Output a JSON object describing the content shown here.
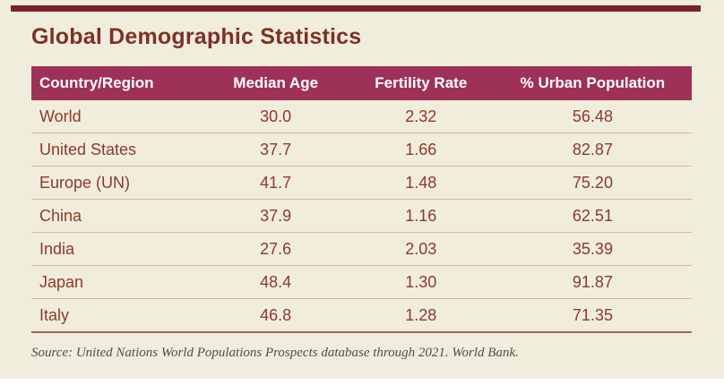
{
  "title": "Global Demographic Statistics",
  "colors": {
    "background": "#f1eddc",
    "top_stripe": "#7a212d",
    "title_text": "#7c3126",
    "header_background": "#9e3158",
    "header_text": "#ffffff",
    "body_text": "#8c392d",
    "row_separator": "#d9b2ac",
    "source_text": "#4e4e4e"
  },
  "chart_data": {
    "type": "table",
    "title": "Global Demographic Statistics",
    "columns": [
      "Country/Region",
      "Median Age",
      "Fertility Rate",
      "% Urban Population"
    ],
    "rows": [
      {
        "country": "World",
        "median_age": "30.0",
        "fertility_rate": "2.32",
        "urban_pct": "56.48"
      },
      {
        "country": "United States",
        "median_age": "37.7",
        "fertility_rate": "1.66",
        "urban_pct": "82.87"
      },
      {
        "country": "Europe (UN)",
        "median_age": "41.7",
        "fertility_rate": "1.48",
        "urban_pct": "75.20"
      },
      {
        "country": "China",
        "median_age": "37.9",
        "fertility_rate": "1.16",
        "urban_pct": "62.51"
      },
      {
        "country": "India",
        "median_age": "27.6",
        "fertility_rate": "2.03",
        "urban_pct": "35.39"
      },
      {
        "country": "Japan",
        "median_age": "48.4",
        "fertility_rate": "1.30",
        "urban_pct": "91.87"
      },
      {
        "country": "Italy",
        "median_age": "46.8",
        "fertility_rate": "1.28",
        "urban_pct": "71.35"
      }
    ],
    "source_note": "Source: United Nations World Populations Prospects database through 2021. World Bank.",
    "layout": {
      "grid": "horizontal row separators",
      "legend": "none"
    }
  }
}
